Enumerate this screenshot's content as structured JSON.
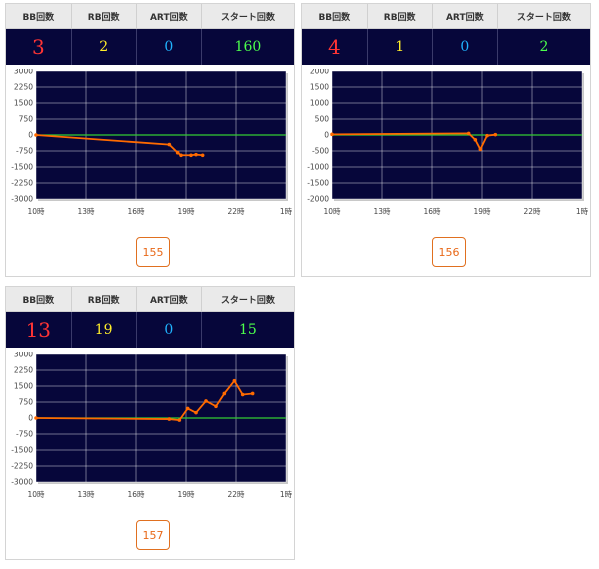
{
  "headers": {
    "bb": "BB回数",
    "rb": "RB回数",
    "art": "ART回数",
    "start": "スタート回数"
  },
  "colors": {
    "bb": "#ff3434",
    "rb": "#ffee2a",
    "art": "#20b4ff",
    "start": "#4cff4c",
    "plot_bg": "#06063a",
    "line": "#ff6a00",
    "zero_line": "#33cc33"
  },
  "machines": [
    {
      "button": "155",
      "stats": {
        "bb": "3",
        "rb": "2",
        "art": "0",
        "start": "160"
      },
      "chart_data": {
        "type": "line",
        "x_ticks": [
          "10時",
          "13時",
          "16時",
          "19時",
          "22時",
          "1時"
        ],
        "y_ticks": [
          "3000",
          "2250",
          "1500",
          "750",
          "0",
          "-750",
          "-1500",
          "-2250",
          "-3000"
        ],
        "ylim": [
          -3000,
          3000
        ],
        "xlim_hours": [
          10,
          25
        ],
        "grid": true,
        "series": [
          {
            "x": [
              10.0,
              18.0,
              18.5,
              18.7,
              19.3,
              19.6,
              20.0
            ],
            "y": [
              0,
              -450,
              -830,
              -950,
              -950,
              -920,
              -950
            ]
          }
        ]
      }
    },
    {
      "button": "156",
      "stats": {
        "bb": "4",
        "rb": "1",
        "art": "0",
        "start": "2"
      },
      "chart_data": {
        "type": "line",
        "x_ticks": [
          "10時",
          "13時",
          "16時",
          "19時",
          "22時",
          "1時"
        ],
        "y_ticks": [
          "2000",
          "1500",
          "1000",
          "500",
          "0",
          "-500",
          "-1000",
          "-1500",
          "-2000"
        ],
        "ylim": [
          -2000,
          2000
        ],
        "xlim_hours": [
          10,
          25
        ],
        "grid": true,
        "series": [
          {
            "x": [
              10.0,
              18.2,
              18.6,
              18.9,
              19.3,
              19.8
            ],
            "y": [
              20,
              50,
              -150,
              -450,
              -20,
              10
            ]
          }
        ]
      }
    },
    {
      "button": "157",
      "stats": {
        "bb": "13",
        "rb": "19",
        "art": "0",
        "start": "15"
      },
      "chart_data": {
        "type": "line",
        "x_ticks": [
          "10時",
          "13時",
          "16時",
          "19時",
          "22時",
          "1時"
        ],
        "y_ticks": [
          "3000",
          "2250",
          "1500",
          "750",
          "0",
          "-750",
          "-1500",
          "-2250",
          "-3000"
        ],
        "ylim": [
          -3000,
          3000
        ],
        "xlim_hours": [
          10,
          25
        ],
        "grid": true,
        "series": [
          {
            "x": [
              10.0,
              18.0,
              18.6,
              19.1,
              19.6,
              20.2,
              20.8,
              21.3,
              21.9,
              22.4,
              23.0
            ],
            "y": [
              0,
              -50,
              -100,
              450,
              250,
              800,
              550,
              1150,
              1750,
              1100,
              1150
            ]
          }
        ]
      }
    }
  ]
}
